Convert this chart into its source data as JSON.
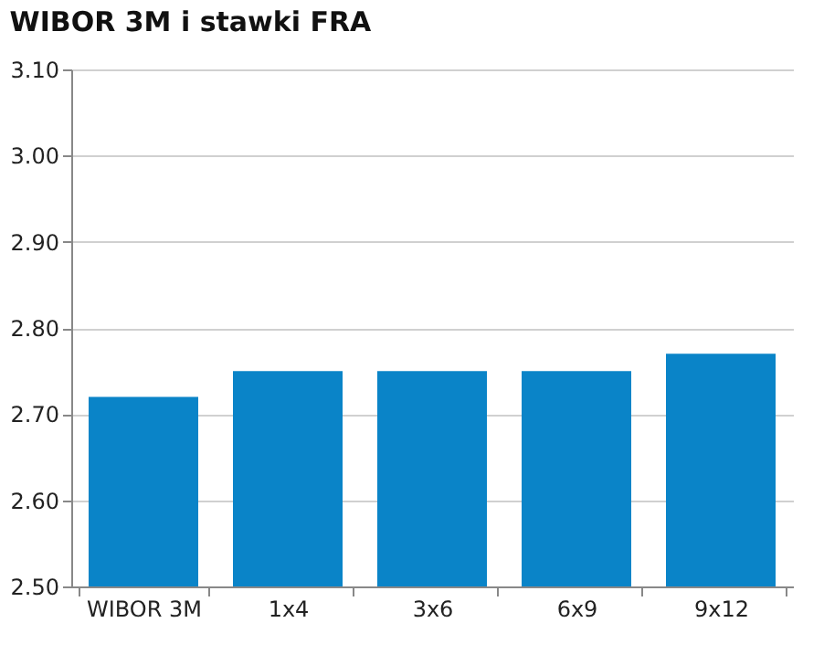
{
  "chart_data": {
    "type": "bar",
    "title": "WIBOR 3M i stawki FRA",
    "categories": [
      "WIBOR 3M",
      "1x4",
      "3x6",
      "6x9",
      "9x12"
    ],
    "series": [
      {
        "color": "#0a84c8",
        "values": [
          2.72,
          2.75,
          2.75,
          2.75,
          2.77
        ]
      }
    ],
    "ylim": [
      2.5,
      3.1
    ],
    "yticks": [
      {
        "value": 2.5,
        "label": "2.50"
      },
      {
        "value": 2.6,
        "label": "2.60"
      },
      {
        "value": 2.7,
        "label": "2.70"
      },
      {
        "value": 2.8,
        "label": "2.80"
      },
      {
        "value": 2.9,
        "label": "2.90"
      },
      {
        "value": 3.0,
        "label": "3.00"
      },
      {
        "value": 3.1,
        "label": "3.10"
      }
    ],
    "grid": "y"
  }
}
